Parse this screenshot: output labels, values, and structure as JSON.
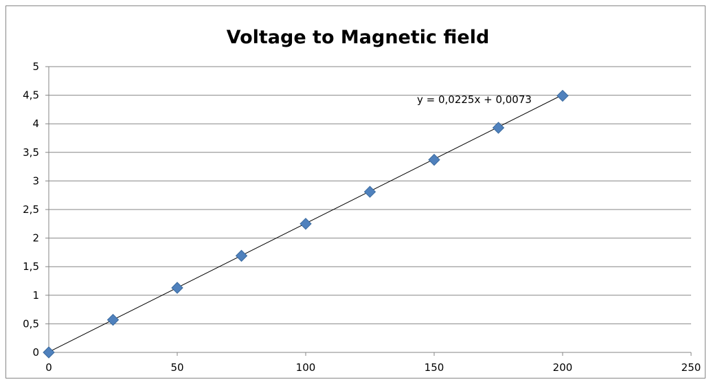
{
  "chart_data": {
    "type": "scatter",
    "title": "Voltage to Magnetic field",
    "xlabel": "",
    "ylabel": "",
    "xlim": [
      0,
      250
    ],
    "ylim": [
      0,
      5
    ],
    "xticks": [
      0,
      50,
      100,
      150,
      200,
      250
    ],
    "yticks": [
      0,
      0.5,
      1,
      1.5,
      2,
      2.5,
      3,
      3.5,
      4,
      4.5,
      5
    ],
    "xtick_labels": [
      "0",
      "50",
      "100",
      "150",
      "200",
      "250"
    ],
    "ytick_labels": [
      "0",
      "0,5",
      "1",
      "1,5",
      "2",
      "2,5",
      "3",
      "3,5",
      "4",
      "4,5",
      "5"
    ],
    "grid": true,
    "legend": "none",
    "series": [
      {
        "x": [
          0,
          25,
          50,
          75,
          100,
          125,
          150,
          175,
          200
        ],
        "y": [
          0.0,
          0.57,
          1.13,
          1.69,
          2.25,
          2.81,
          3.37,
          3.93,
          4.49
        ],
        "marker": "diamond",
        "color": "#4f81bd"
      }
    ],
    "trendline": {
      "type": "linear",
      "slope": 0.0225,
      "intercept": 0.0073,
      "x_range": [
        0,
        200
      ],
      "equation": "y = 0,0225x + 0,0073",
      "color": "#000000"
    }
  }
}
